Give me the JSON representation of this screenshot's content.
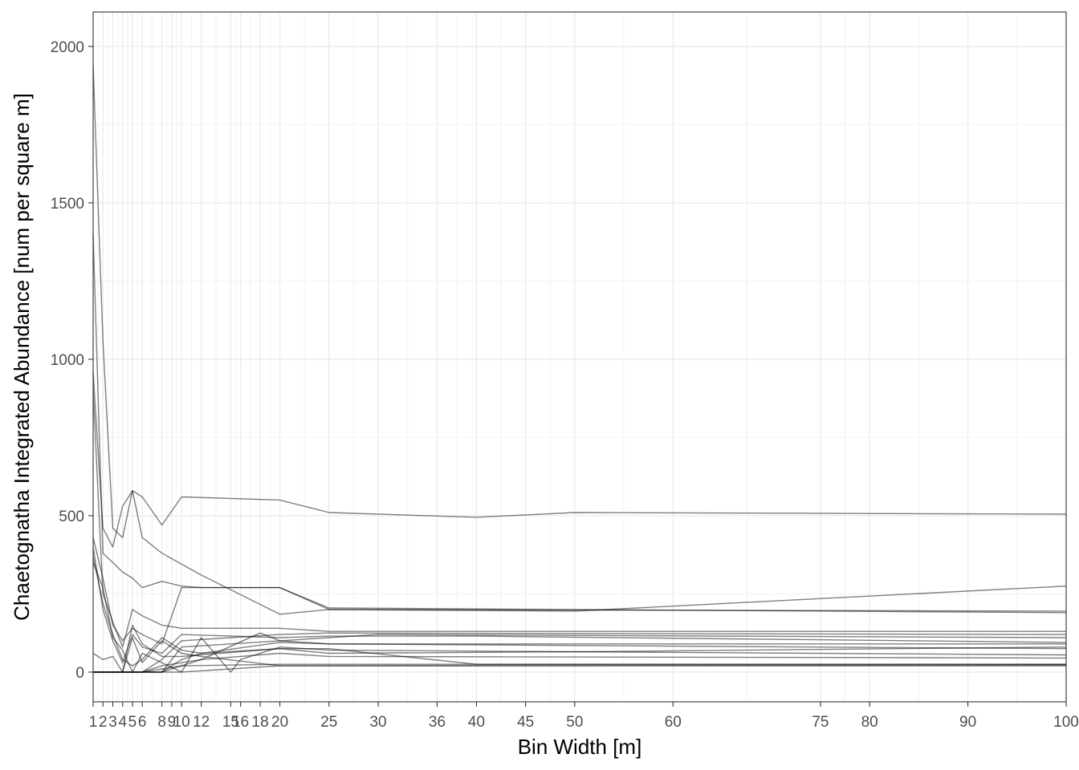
{
  "chart_data": {
    "type": "line",
    "title": "",
    "xlabel": "Bin Width [m]",
    "ylabel": "Chaetognatha Integrated Abundance [num per square m]",
    "xlim": [
      1,
      100
    ],
    "ylim": [
      -95,
      2110
    ],
    "x_ticks": [
      1,
      2,
      3,
      4,
      5,
      6,
      8,
      9,
      10,
      12,
      15,
      16,
      18,
      20,
      25,
      30,
      36,
      40,
      45,
      50,
      60,
      75,
      80,
      90,
      100
    ],
    "x_tick_labels": [
      "1",
      "2",
      "3",
      "4",
      "5",
      "6",
      "8",
      "9",
      "10",
      "12",
      "15",
      "16",
      "18",
      "20",
      "25",
      "30",
      "36",
      "40",
      "45",
      "50",
      "60",
      "75",
      "80",
      "90",
      "100"
    ],
    "y_ticks": [
      0,
      500,
      1000,
      1500,
      2000
    ],
    "y_tick_labels": [
      "0",
      "500",
      "1000",
      "1500",
      "2000"
    ],
    "x_minor_grid": [
      1.5,
      2.5,
      3.5,
      4.5,
      5.5,
      7,
      8.5,
      9.5,
      11,
      13.5,
      15.5,
      17,
      19,
      22.5,
      27.5,
      33,
      38,
      42.5,
      47.5,
      55,
      67.5,
      77.5,
      85,
      95
    ],
    "y_minor_grid": [
      250,
      750,
      1250,
      1750
    ],
    "grid": true,
    "legend": "none",
    "series": [
      {
        "x": [
          1,
          2,
          3,
          4,
          5,
          6,
          8,
          10,
          20,
          25,
          40,
          50,
          100
        ],
        "values": [
          1940,
          1060,
          460,
          430,
          580,
          560,
          470,
          560,
          550,
          510,
          495,
          510,
          505
        ]
      },
      {
        "x": [
          1,
          2,
          3,
          4,
          5,
          6,
          8,
          10,
          12,
          20,
          25,
          100
        ],
        "values": [
          1400,
          380,
          350,
          320,
          300,
          270,
          290,
          275,
          270,
          270,
          205,
          190
        ]
      },
      {
        "x": [
          1,
          2,
          3,
          4,
          5,
          6,
          8,
          10,
          12,
          20,
          25,
          100
        ],
        "values": [
          960,
          460,
          400,
          530,
          580,
          430,
          380,
          345,
          310,
          185,
          200,
          195
        ]
      },
      {
        "x": [
          1,
          2,
          3,
          4,
          5,
          6,
          8,
          10,
          12,
          20,
          25,
          100
        ],
        "values": [
          900,
          250,
          160,
          80,
          200,
          180,
          150,
          140,
          140,
          140,
          130,
          130
        ]
      },
      {
        "x": [
          1,
          2,
          3,
          4,
          5,
          6,
          8,
          10,
          20,
          25,
          50,
          100
        ],
        "values": [
          430,
          300,
          150,
          100,
          140,
          120,
          90,
          270,
          270,
          200,
          195,
          275
        ]
      },
      {
        "x": [
          1,
          2,
          3,
          4,
          5,
          6,
          8,
          10,
          20,
          25,
          40,
          100
        ],
        "values": [
          400,
          200,
          100,
          30,
          120,
          80,
          60,
          120,
          110,
          115,
          115,
          95
        ]
      },
      {
        "x": [
          1,
          2,
          3,
          4,
          5,
          6,
          8,
          10,
          12,
          20,
          25,
          100
        ],
        "values": [
          370,
          220,
          120,
          40,
          20,
          40,
          110,
          70,
          60,
          95,
          90,
          75
        ]
      },
      {
        "x": [
          1,
          2,
          3,
          4,
          5,
          6,
          8,
          10,
          20,
          25,
          100
        ],
        "values": [
          350,
          270,
          110,
          70,
          0,
          0,
          40,
          100,
          120,
          125,
          120
        ]
      },
      {
        "x": [
          1,
          2,
          3,
          4,
          5,
          6,
          8,
          10,
          20,
          25,
          40,
          100
        ],
        "values": [
          60,
          40,
          50,
          0,
          150,
          90,
          50,
          50,
          75,
          75,
          25,
          25
        ]
      },
      {
        "x": [
          1,
          2,
          3,
          4,
          5,
          6,
          8,
          10,
          12,
          20,
          25,
          50,
          100
        ],
        "values": [
          0,
          0,
          0,
          0,
          0,
          0,
          0,
          40,
          60,
          75,
          60,
          65,
          80
        ]
      },
      {
        "x": [
          1,
          2,
          3,
          4,
          5,
          6,
          8,
          10,
          12,
          15,
          16,
          20,
          25,
          100
        ],
        "values": [
          0,
          0,
          0,
          0,
          0,
          60,
          30,
          0,
          110,
          0,
          40,
          80,
          70,
          55
        ]
      },
      {
        "x": [
          1,
          2,
          3,
          4,
          5,
          6,
          8,
          10,
          12,
          20,
          25,
          100
        ],
        "values": [
          0,
          0,
          0,
          0,
          110,
          30,
          100,
          60,
          50,
          20,
          20,
          20
        ]
      },
      {
        "x": [
          1,
          2,
          3,
          4,
          5,
          6,
          8,
          10,
          12,
          18,
          20,
          25,
          100
        ],
        "values": [
          0,
          0,
          0,
          0,
          0,
          0,
          20,
          30,
          40,
          125,
          100,
          90,
          90
        ]
      },
      {
        "x": [
          1,
          2,
          3,
          4,
          5,
          6,
          8,
          10,
          20,
          25,
          30,
          100
        ],
        "values": [
          0,
          0,
          0,
          0,
          0,
          0,
          0,
          80,
          100,
          110,
          120,
          110
        ]
      },
      {
        "x": [
          1,
          2,
          3,
          4,
          5,
          6,
          8,
          10,
          20,
          100
        ],
        "values": [
          0,
          0,
          0,
          0,
          0,
          0,
          10,
          20,
          25,
          25
        ]
      },
      {
        "x": [
          1,
          2,
          3,
          4,
          5,
          6,
          8,
          10,
          20,
          100
        ],
        "values": [
          0,
          0,
          0,
          0,
          0,
          0,
          0,
          0,
          20,
          22
        ]
      },
      {
        "x": [
          1,
          2,
          3,
          4,
          5,
          6,
          8,
          10,
          12,
          20,
          25,
          100
        ],
        "values": [
          0,
          0,
          0,
          0,
          0,
          0,
          0,
          20,
          40,
          60,
          50,
          45
        ]
      }
    ]
  }
}
